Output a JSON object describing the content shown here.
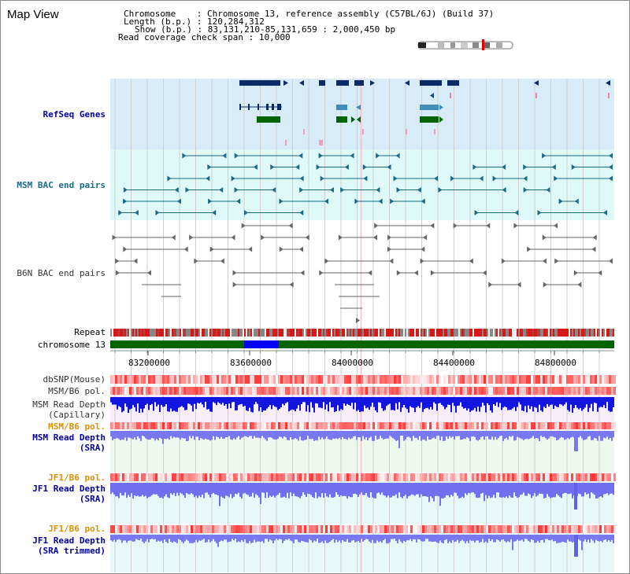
{
  "title": "Map View",
  "info": {
    "chromosome_key": "Chromosome",
    "chromosome_value": "Chromosome 13, reference assembly (C57BL/6J) (Build 37)",
    "length_key": "Length (b.p.)",
    "length_value": "120,284,312",
    "show_key": "Show (b.p.)",
    "show_value": "83,131,210-85,131,659 : 2,000,450 bp",
    "span_key": "Read coverage check span",
    "span_value": "10,000"
  },
  "tracks": {
    "refseq": "RefSeq Genes",
    "msm_bac": "MSM BAC end pairs",
    "b6n_bac": "B6N BAC end pairs",
    "repeat": "Repeat",
    "chromosome": "chromosome 13",
    "dbsnp": "dbSNP(Mouse)",
    "msm_pol1": "MSM/B6 pol.",
    "msm_depth_cap_1": "MSM Read Depth",
    "msm_depth_cap_2": "(Capillary)",
    "msm_pol2": "MSM/B6 pol.",
    "msm_depth_sra_1": "MSM Read Depth",
    "msm_depth_sra_2": "(SRA)",
    "jf1_pol1": "JF1/B6 pol.",
    "jf1_depth_sra_1": "JF1 Read Depth",
    "jf1_depth_sra_2": "(SRA)",
    "jf1_pol2": "JF1/B6 pol.",
    "jf1_depth_trim_1": "JF1 Read Depth",
    "jf1_depth_trim_2": "(SRA trimmed)"
  },
  "axis": {
    "ticks": [
      "83200000",
      "83600000",
      "84000000",
      "84400000",
      "84800000"
    ]
  },
  "colors": {
    "refseq_bg": "#d7ecf8",
    "msm_bg": "#dff8f8",
    "gene_dark": "#0d2a66",
    "gene_mid": "#3f8fb8",
    "gene_green": "#006400",
    "bac_msm": "#1a6a8a",
    "bac_b6n": "#666666",
    "chrom_green": "#006400",
    "chrom_blue": "#0000ff",
    "depth_blue": "#1414e0",
    "depth_light": "#7878f0"
  }
}
